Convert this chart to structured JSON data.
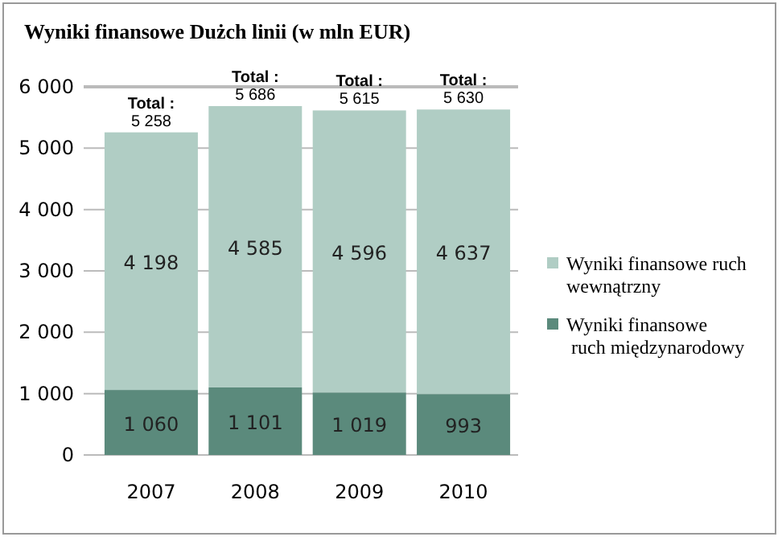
{
  "chart_data": {
    "type": "bar",
    "title": "Wyniki finansowe Dużch linii (w mln EUR)",
    "categories": [
      "2007",
      "2008",
      "2009",
      "2010"
    ],
    "stacked": true,
    "ylim": [
      0,
      6000
    ],
    "yticks": [
      0,
      {
        "value": 1000,
        "label": "1 000"
      },
      {
        "value": 2000,
        "label": "2 000"
      },
      {
        "value": 3000,
        "label": "3 000"
      },
      {
        "value": 4000,
        "label": "4 000"
      },
      {
        "value": 5000,
        "label": "5 000"
      },
      {
        "value": 6000,
        "label": "6 000"
      }
    ],
    "grid": "y",
    "legend": "right",
    "series": [
      {
        "name": "Wyniki finansowe\nruch międzynarodowy",
        "color": "#5b8a7c",
        "values": [
          1060,
          1101,
          1019,
          993
        ],
        "value_labels": [
          "1 060",
          "1 101",
          "1 019",
          "993"
        ]
      },
      {
        "name": "Wyniki finansowe ruch\nwewnątrzny",
        "color": "#b0cdc4",
        "values": [
          4198,
          4585,
          4596,
          4637
        ],
        "value_labels": [
          "4 198",
          "4 585",
          "4 596",
          "4 637"
        ]
      }
    ],
    "totals": [
      "Total :\n5 258",
      "Total :\n5 686",
      "Total :\n5 615",
      "Total :\n5 630"
    ]
  }
}
